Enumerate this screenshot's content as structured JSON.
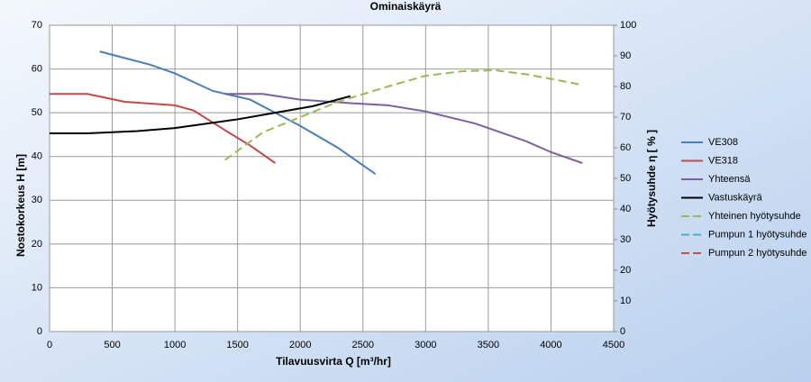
{
  "chart_data": {
    "type": "line",
    "title": "Ominaiskäyrä",
    "x_label": "Tilavuusvirta Q [m³/hr]",
    "y_label": "Nostokorkeus H [m]",
    "y2_label": "Hyötysuhde η [ % ]",
    "xlim": [
      0,
      4500
    ],
    "xticks": [
      0,
      500,
      1000,
      1500,
      2000,
      2500,
      3000,
      3500,
      4000,
      4500
    ],
    "ylim": [
      0,
      70
    ],
    "yticks": [
      0,
      10,
      20,
      30,
      40,
      50,
      60,
      70
    ],
    "y2lim": [
      0,
      100
    ],
    "y2ticks": [
      0,
      10,
      20,
      30,
      40,
      50,
      60,
      70,
      80,
      90,
      100
    ],
    "grid": true,
    "legend": "right",
    "series": [
      {
        "name": "VE308",
        "color": "#4a7ebb",
        "dash": false,
        "x": [
          400,
          800,
          1000,
          1300,
          1600,
          2000,
          2300,
          2600
        ],
        "values": [
          64,
          61,
          59,
          55,
          53,
          47,
          42,
          36
        ]
      },
      {
        "name": "VE318",
        "color": "#be4b48",
        "dash": false,
        "x": [
          0,
          300,
          600,
          1000,
          1150,
          1400,
          1600,
          1800
        ],
        "values": [
          54.3,
          54.3,
          52.5,
          51.7,
          50.5,
          46,
          42.5,
          38.5
        ]
      },
      {
        "name": "Yhteensä",
        "color": "#7d5fa0",
        "dash": false,
        "x": [
          1400,
          1700,
          2000,
          2400,
          2700,
          3000,
          3400,
          3800,
          4000,
          4250
        ],
        "values": [
          54.3,
          54.3,
          53,
          52.2,
          51.7,
          50.3,
          47.5,
          43.5,
          41,
          38.5
        ]
      },
      {
        "name": "Vastuskäyrä",
        "color": "#000000",
        "dash": false,
        "x": [
          0,
          300,
          700,
          1000,
          1500,
          1800,
          2100,
          2400
        ],
        "values": [
          45.3,
          45.3,
          45.8,
          46.5,
          48.5,
          50,
          51.5,
          53.8
        ]
      },
      {
        "name": "Yhteinen hyötysuhde",
        "color": "#98b954",
        "dash": true,
        "axis": "y2",
        "x": [
          1400,
          1700,
          2000,
          2300,
          2700,
          3000,
          3300,
          3550,
          3800,
          4000,
          4250
        ],
        "values": [
          56,
          65,
          70,
          75,
          80,
          83.5,
          85,
          85.3,
          84,
          82.5,
          80.5
        ]
      },
      {
        "name": "Pumpun 1 hyötysuhde",
        "color": "#4bacc6",
        "dash": true,
        "axis": "y2",
        "x": [],
        "values": []
      },
      {
        "name": "Pumpun 2 hyötysuhde",
        "color": "#c0504d",
        "dash": true,
        "axis": "y2",
        "x": [],
        "values": []
      }
    ]
  }
}
